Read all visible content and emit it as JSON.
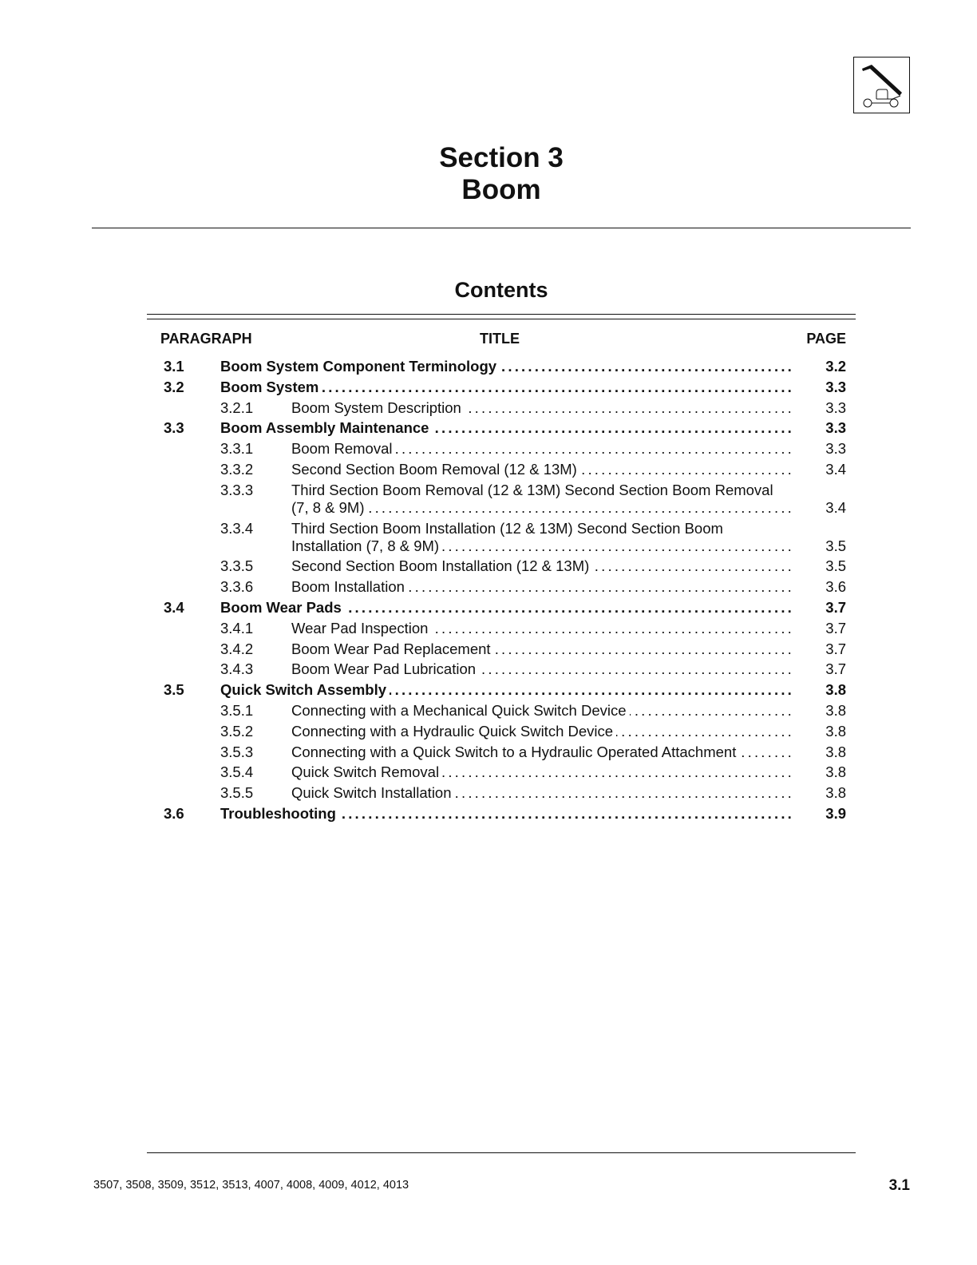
{
  "header": {
    "title_line1": "Section 3",
    "title_line2": "Boom",
    "logo_icon": "telehandler-boom-icon"
  },
  "contents": {
    "heading": "Contents",
    "columns": {
      "paragraph": "PARAGRAPH",
      "title": "TITLE",
      "page": "PAGE"
    },
    "entries": [
      {
        "level": "main",
        "para": "3.1",
        "title": "Boom System Component Terminology",
        "page": "3.2"
      },
      {
        "level": "main",
        "para": "3.2",
        "title": "Boom System",
        "page": "3.3"
      },
      {
        "level": "sub",
        "para": "3.2.1",
        "title": "Boom System Description",
        "page": "3.3"
      },
      {
        "level": "main",
        "para": "3.3",
        "title": "Boom Assembly Maintenance",
        "page": "3.3"
      },
      {
        "level": "sub",
        "para": "3.3.1",
        "title": "Boom Removal",
        "page": "3.3"
      },
      {
        "level": "sub",
        "para": "3.3.2",
        "title": "Second Section Boom Removal (12 & 13M)",
        "page": "3.4"
      },
      {
        "level": "sub",
        "para": "3.3.3",
        "title": "Third Section Boom Removal (12 & 13M) Second Section Boom Removal (7, 8 & 9M)",
        "page": "3.4"
      },
      {
        "level": "sub",
        "para": "3.3.4",
        "title": "Third Section Boom Installation (12 & 13M) Second Section Boom Installation (7, 8 & 9M)",
        "page": "3.5"
      },
      {
        "level": "sub",
        "para": "3.3.5",
        "title": "Second Section Boom Installation (12 & 13M)",
        "page": "3.5"
      },
      {
        "level": "sub",
        "para": "3.3.6",
        "title": "Boom Installation",
        "page": "3.6"
      },
      {
        "level": "main",
        "para": "3.4",
        "title": "Boom Wear Pads",
        "page": "3.7"
      },
      {
        "level": "sub",
        "para": "3.4.1",
        "title": "Wear Pad Inspection",
        "page": "3.7"
      },
      {
        "level": "sub",
        "para": "3.4.2",
        "title": "Boom Wear Pad Replacement",
        "page": "3.7"
      },
      {
        "level": "sub",
        "para": "3.4.3",
        "title": "Boom Wear Pad Lubrication",
        "page": "3.7"
      },
      {
        "level": "main",
        "para": "3.5",
        "title": "Quick Switch Assembly",
        "page": "3.8"
      },
      {
        "level": "sub",
        "para": "3.5.1",
        "title": "Connecting with a Mechanical Quick Switch Device",
        "page": "3.8"
      },
      {
        "level": "sub",
        "para": "3.5.2",
        "title": "Connecting with a Hydraulic Quick Switch Device",
        "page": "3.8"
      },
      {
        "level": "sub",
        "para": "3.5.3",
        "title": "Connecting with a Quick Switch to a Hydraulic Operated Attachment",
        "page": "3.8"
      },
      {
        "level": "sub",
        "para": "3.5.4",
        "title": "Quick Switch Removal",
        "page": "3.8"
      },
      {
        "level": "sub",
        "para": "3.5.5",
        "title": "Quick Switch Installation",
        "page": "3.8"
      },
      {
        "level": "main",
        "para": "3.6",
        "title": "Troubleshooting",
        "page": "3.9"
      }
    ]
  },
  "footer": {
    "models": "3507, 3508, 3509, 3512, 3513, 4007, 4008, 4009, 4012, 4013",
    "page_number": "3.1"
  }
}
